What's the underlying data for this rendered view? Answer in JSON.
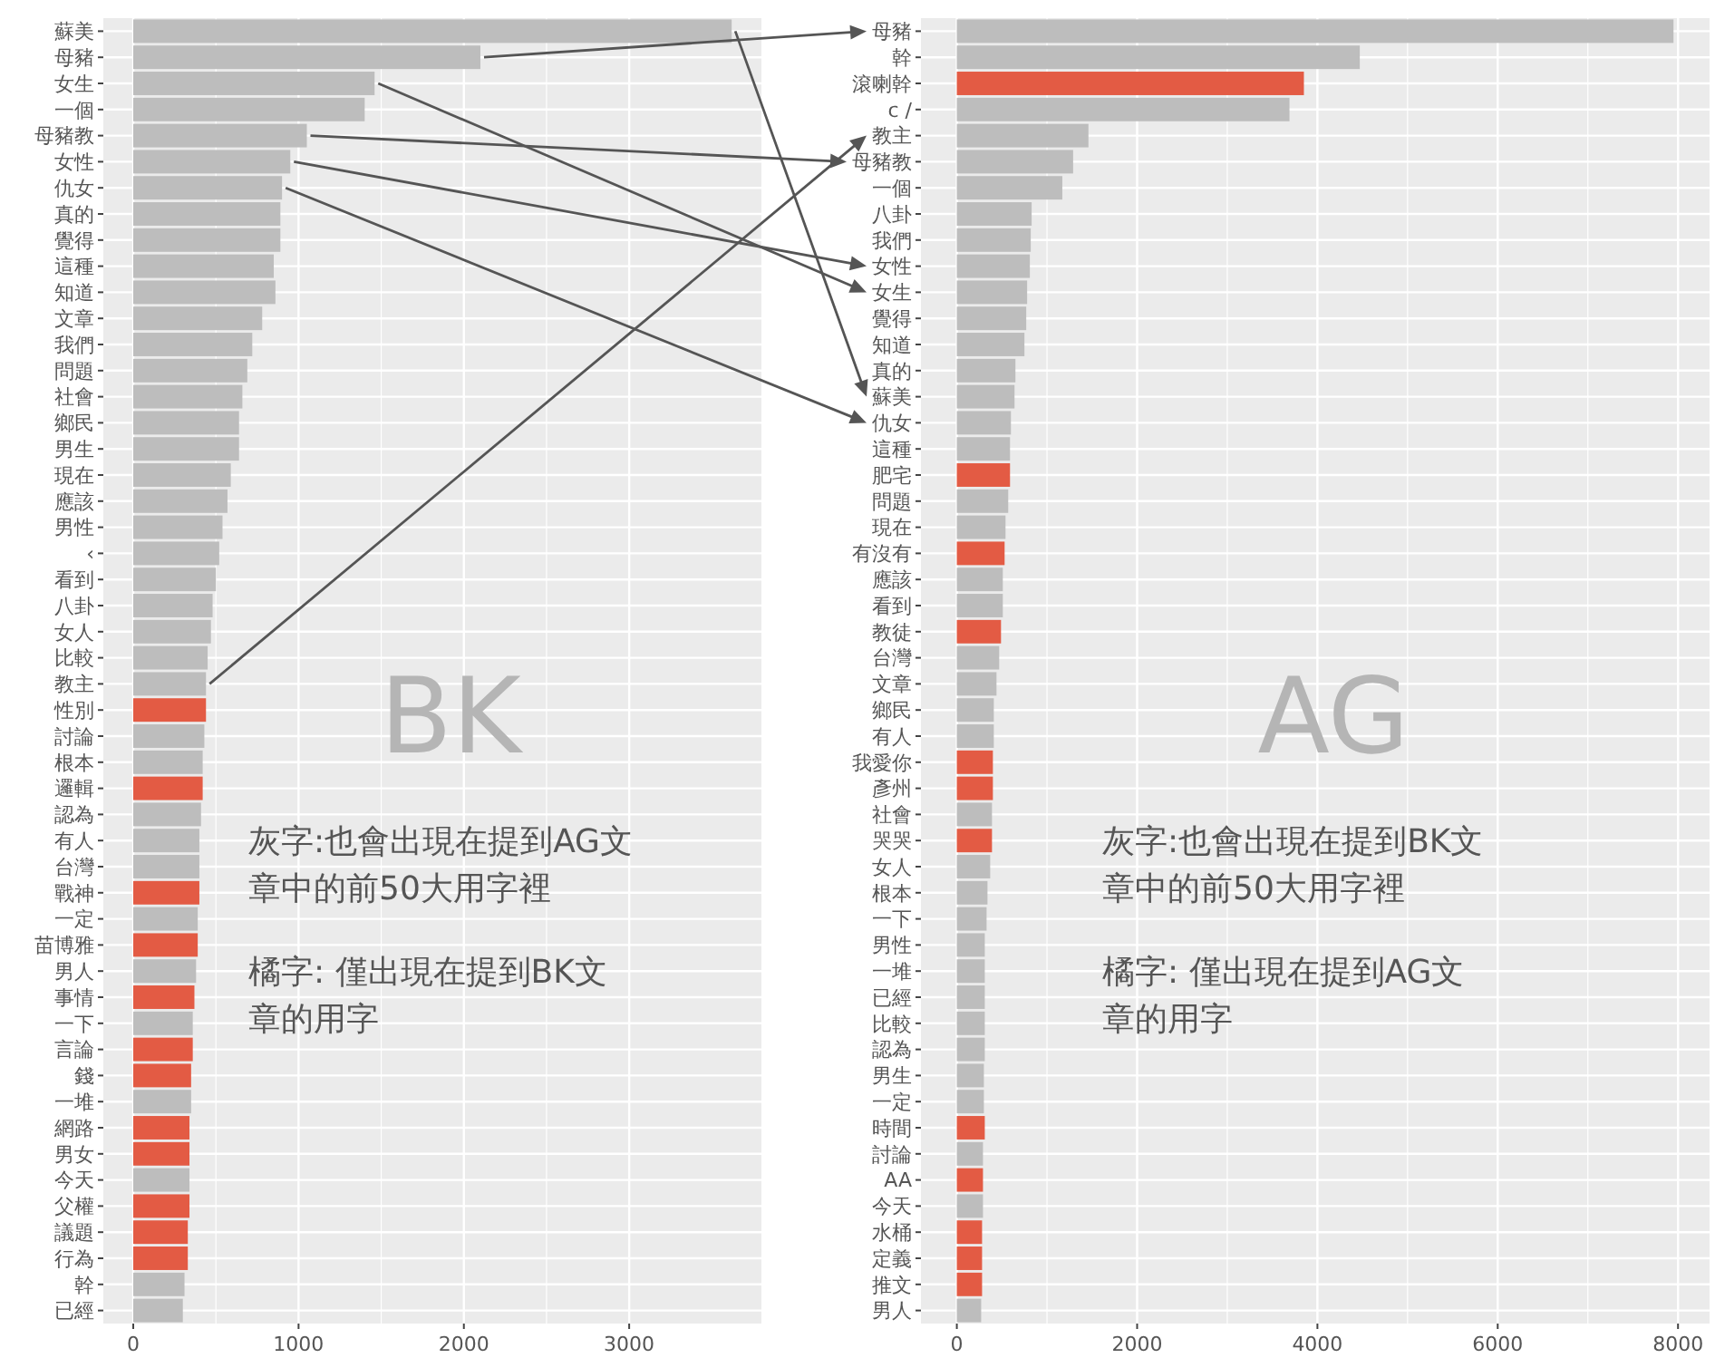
{
  "chart_data": [
    {
      "type": "bar",
      "orientation": "horizontal",
      "grid": true,
      "categories": [
        "蘇美",
        "母豬",
        "女生",
        "一個",
        "母豬教",
        "女性",
        "仇女",
        "真的",
        "覺得",
        "這種",
        "知道",
        "文章",
        "我們",
        "問題",
        "社會",
        "鄉民",
        "男生",
        "現在",
        "應該",
        "男性",
        "‹",
        "看到",
        "八卦",
        "女人",
        "比較",
        "教主",
        "性別",
        "討論",
        "根本",
        "邏輯",
        "認為",
        "有人",
        "台灣",
        "戰神",
        "一定",
        "苗博雅",
        "男人",
        "事情",
        "一下",
        "言論",
        "錢",
        "一堆",
        "網路",
        "男女",
        "今天",
        "父權",
        "議題",
        "行為",
        "幹",
        "已經"
      ],
      "values": [
        3620,
        2100,
        1460,
        1400,
        1050,
        950,
        900,
        890,
        890,
        850,
        860,
        780,
        720,
        690,
        660,
        640,
        640,
        590,
        570,
        540,
        520,
        500,
        480,
        470,
        450,
        440,
        440,
        430,
        420,
        420,
        410,
        400,
        400,
        400,
        390,
        390,
        380,
        370,
        360,
        360,
        350,
        350,
        340,
        340,
        340,
        340,
        330,
        330,
        310,
        300
      ],
      "colors": [
        "#bdbdbd",
        "#bdbdbd",
        "#bdbdbd",
        "#bdbdbd",
        "#bdbdbd",
        "#bdbdbd",
        "#bdbdbd",
        "#bdbdbd",
        "#bdbdbd",
        "#bdbdbd",
        "#bdbdbd",
        "#bdbdbd",
        "#bdbdbd",
        "#bdbdbd",
        "#bdbdbd",
        "#bdbdbd",
        "#bdbdbd",
        "#bdbdbd",
        "#bdbdbd",
        "#bdbdbd",
        "#bdbdbd",
        "#bdbdbd",
        "#bdbdbd",
        "#bdbdbd",
        "#bdbdbd",
        "#bdbdbd",
        "#e35b44",
        "#bdbdbd",
        "#bdbdbd",
        "#e35b44",
        "#bdbdbd",
        "#bdbdbd",
        "#bdbdbd",
        "#e35b44",
        "#bdbdbd",
        "#e35b44",
        "#bdbdbd",
        "#e35b44",
        "#bdbdbd",
        "#e35b44",
        "#e35b44",
        "#bdbdbd",
        "#e35b44",
        "#e35b44",
        "#bdbdbd",
        "#e35b44",
        "#e35b44",
        "#e35b44",
        "#bdbdbd",
        "#bdbdbd"
      ],
      "xlim": [
        -181,
        3800
      ],
      "xticks": [
        0,
        1000,
        2000,
        3000
      ],
      "annotations": [
        "BK",
        "灰字:也會出現在提到AG文章中的前50大用字裡",
        "橘字: 僅出現在提到BK文章的用字"
      ]
    },
    {
      "type": "bar",
      "orientation": "horizontal",
      "grid": true,
      "categories": [
        "母豬",
        "幹",
        "滾喇幹",
        "c /",
        "教主",
        "母豬教",
        "一個",
        "八卦",
        "我們",
        "女性",
        "女生",
        "覺得",
        "知道",
        "真的",
        "蘇美",
        "仇女",
        "這種",
        "肥宅",
        "問題",
        "現在",
        "有沒有",
        "應該",
        "看到",
        "教徒",
        "台灣",
        "文章",
        "鄉民",
        "有人",
        "我愛你",
        "彥州",
        "社會",
        "哭哭",
        "女人",
        "根本",
        "一下",
        "男性",
        "一堆",
        "已經",
        "比較",
        "認為",
        "男生",
        "一定",
        "時間",
        "討論",
        "AA",
        "今天",
        "水桶",
        "定義",
        "推文",
        "男人"
      ],
      "values": [
        7950,
        4470,
        3850,
        3690,
        1460,
        1290,
        1170,
        830,
        820,
        810,
        780,
        770,
        750,
        650,
        640,
        600,
        590,
        590,
        570,
        540,
        530,
        510,
        510,
        490,
        470,
        440,
        410,
        410,
        400,
        400,
        390,
        390,
        370,
        340,
        330,
        310,
        310,
        310,
        310,
        310,
        300,
        300,
        310,
        290,
        290,
        290,
        280,
        280,
        280,
        270
      ],
      "colors": [
        "#bdbdbd",
        "#bdbdbd",
        "#e35b44",
        "#bdbdbd",
        "#bdbdbd",
        "#bdbdbd",
        "#bdbdbd",
        "#bdbdbd",
        "#bdbdbd",
        "#bdbdbd",
        "#bdbdbd",
        "#bdbdbd",
        "#bdbdbd",
        "#bdbdbd",
        "#bdbdbd",
        "#bdbdbd",
        "#bdbdbd",
        "#e35b44",
        "#bdbdbd",
        "#bdbdbd",
        "#e35b44",
        "#bdbdbd",
        "#bdbdbd",
        "#e35b44",
        "#bdbdbd",
        "#bdbdbd",
        "#bdbdbd",
        "#bdbdbd",
        "#e35b44",
        "#e35b44",
        "#bdbdbd",
        "#e35b44",
        "#bdbdbd",
        "#bdbdbd",
        "#bdbdbd",
        "#bdbdbd",
        "#bdbdbd",
        "#bdbdbd",
        "#bdbdbd",
        "#bdbdbd",
        "#bdbdbd",
        "#bdbdbd",
        "#e35b44",
        "#bdbdbd",
        "#e35b44",
        "#bdbdbd",
        "#e35b44",
        "#e35b44",
        "#e35b44",
        "#bdbdbd"
      ],
      "xlim": [
        -398,
        8350
      ],
      "xticks": [
        0,
        2000,
        4000,
        6000,
        8000
      ],
      "annotations": [
        "AG",
        "灰字:也會出現在提到BK文章中的前50大用字裡",
        "橘字: 僅出現在提到AG文章的用字"
      ]
    }
  ]
}
